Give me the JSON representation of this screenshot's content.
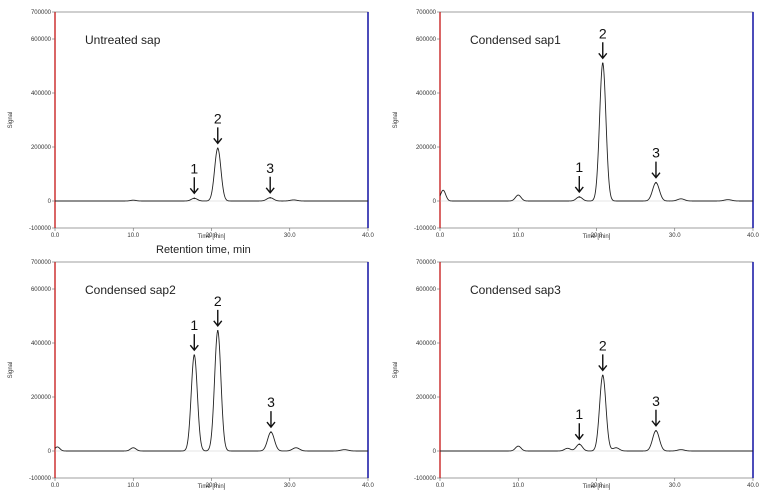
{
  "caption": "Retention time, min",
  "chart_data": [
    {
      "type": "line",
      "title": "Untreated sap",
      "xlabel": "Time [min]",
      "ylabel": "Signal",
      "xlim": [
        0,
        40
      ],
      "ylim": [
        -100000,
        700000
      ],
      "xticks": [
        0,
        10,
        20,
        30,
        40
      ],
      "xtick_labels": [
        "0.0",
        "10.0",
        "20.0",
        "30.0",
        "40.0"
      ],
      "yticks": [
        -100000,
        0,
        200000,
        400000,
        600000,
        700000
      ],
      "ytick_labels": [
        "-100000",
        "0",
        "200000",
        "400000",
        "600000",
        "700000"
      ],
      "peaks": [
        {
          "label": "1",
          "rt": 17.8,
          "height": 10000
        },
        {
          "label": "2",
          "rt": 20.8,
          "height": 195000
        },
        {
          "label": "3",
          "rt": 27.5,
          "height": 12000
        }
      ],
      "minor_peaks": [
        {
          "rt": 10.0,
          "height": 3000
        },
        {
          "rt": 30.5,
          "height": 4000
        }
      ],
      "colors": {
        "left_edge": "#c00000",
        "right_edge": "#1f1fa8",
        "trace": "#222222"
      }
    },
    {
      "type": "line",
      "title": "Condensed sap1",
      "xlabel": "Time [min]",
      "ylabel": "Signal",
      "xlim": [
        0,
        40
      ],
      "ylim": [
        -100000,
        700000
      ],
      "xticks": [
        0,
        10,
        20,
        30,
        40
      ],
      "xtick_labels": [
        "0.0",
        "10.0",
        "20.0",
        "30.0",
        "40.0"
      ],
      "yticks": [
        -100000,
        0,
        200000,
        400000,
        600000,
        700000
      ],
      "ytick_labels": [
        "-100000",
        "0",
        "200000",
        "400000",
        "600000",
        "700000"
      ],
      "peaks": [
        {
          "label": "1",
          "rt": 17.8,
          "height": 15000
        },
        {
          "label": "2",
          "rt": 20.8,
          "height": 510000
        },
        {
          "label": "3",
          "rt": 27.6,
          "height": 68000
        }
      ],
      "minor_peaks": [
        {
          "rt": 0.4,
          "height": 40000
        },
        {
          "rt": 10.0,
          "height": 22000
        },
        {
          "rt": 30.8,
          "height": 8000
        },
        {
          "rt": 36.8,
          "height": 5000
        }
      ],
      "colors": {
        "left_edge": "#c00000",
        "right_edge": "#1f1fa8",
        "trace": "#222222"
      }
    },
    {
      "type": "line",
      "title": "Condensed sap2",
      "xlabel": "Time [min]",
      "ylabel": "Signal",
      "xlim": [
        0,
        40
      ],
      "ylim": [
        -100000,
        700000
      ],
      "xticks": [
        0,
        10,
        20,
        30,
        40
      ],
      "xtick_labels": [
        "0.0",
        "10.0",
        "20.0",
        "30.0",
        "40.0"
      ],
      "yticks": [
        -100000,
        0,
        200000,
        400000,
        600000,
        700000
      ],
      "ytick_labels": [
        "-100000",
        "0",
        "200000",
        "400000",
        "600000",
        "700000"
      ],
      "peaks": [
        {
          "label": "1",
          "rt": 17.8,
          "height": 355000
        },
        {
          "label": "2",
          "rt": 20.8,
          "height": 445000
        },
        {
          "label": "3",
          "rt": 27.6,
          "height": 70000
        }
      ],
      "minor_peaks": [
        {
          "rt": 0.3,
          "height": 15000
        },
        {
          "rt": 10.0,
          "height": 12000
        },
        {
          "rt": 30.8,
          "height": 12000
        },
        {
          "rt": 37.0,
          "height": 5000
        }
      ],
      "colors": {
        "left_edge": "#c00000",
        "right_edge": "#1f1fa8",
        "trace": "#222222"
      }
    },
    {
      "type": "line",
      "title": "Condensed sap3",
      "xlabel": "Time [min]",
      "ylabel": "Signal",
      "xlim": [
        0,
        40
      ],
      "ylim": [
        -100000,
        700000
      ],
      "xticks": [
        0,
        10,
        20,
        30,
        40
      ],
      "xtick_labels": [
        "0.0",
        "10.0",
        "20.0",
        "30.0",
        "40.0"
      ],
      "yticks": [
        -100000,
        0,
        200000,
        400000,
        600000,
        700000
      ],
      "ytick_labels": [
        "-100000",
        "0",
        "200000",
        "400000",
        "600000",
        "700000"
      ],
      "peaks": [
        {
          "label": "1",
          "rt": 17.8,
          "height": 25000
        },
        {
          "label": "2",
          "rt": 20.8,
          "height": 280000
        },
        {
          "label": "3",
          "rt": 27.6,
          "height": 75000
        }
      ],
      "minor_peaks": [
        {
          "rt": 10.0,
          "height": 18000
        },
        {
          "rt": 16.3,
          "height": 10000
        },
        {
          "rt": 22.5,
          "height": 12000
        },
        {
          "rt": 30.8,
          "height": 5000
        }
      ],
      "colors": {
        "left_edge": "#c00000",
        "right_edge": "#1f1fa8",
        "trace": "#222222"
      }
    }
  ]
}
